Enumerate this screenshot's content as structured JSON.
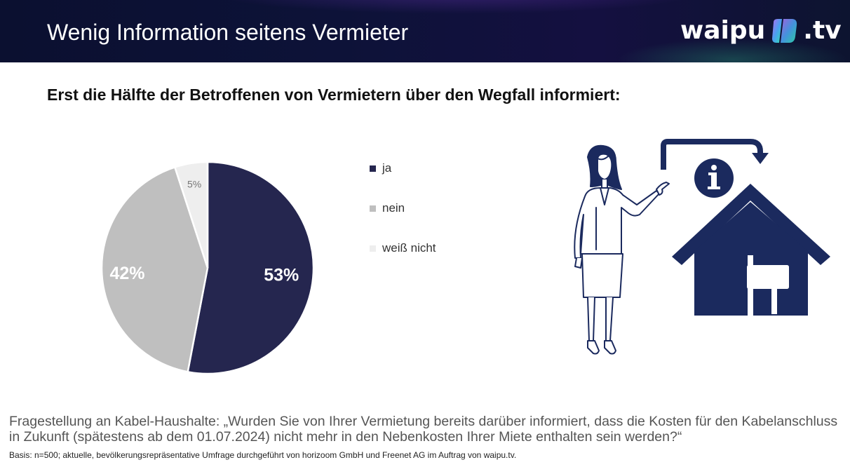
{
  "header": {
    "title": "Wenig Information seitens Vermieter",
    "logo": {
      "text_left": "waipu",
      "text_right": ".tv"
    }
  },
  "subtitle": "Erst die Hälfte der Betroffenen von Vermietern über den Wegfall informiert:",
  "chart_data": {
    "type": "pie",
    "title": "",
    "categories": [
      "ja",
      "nein",
      "weiß nicht"
    ],
    "values": [
      53,
      42,
      5
    ],
    "labels": [
      "53%",
      "42%",
      "5%"
    ],
    "colors": [
      "#25264f",
      "#bfbfbf",
      "#eeeeee"
    ],
    "label_colors": [
      "#ffffff",
      "#ffffff",
      "#777777"
    ],
    "legend_position": "right"
  },
  "illustration": {
    "icons": [
      "businesswoman-pointing-icon",
      "info-icon",
      "house-icon",
      "arrow-icon"
    ]
  },
  "footer": {
    "question": "Fragestellung an Kabel-Haushalte: „Wurden Sie von Ihrer Vermietung bereits darüber informiert, dass die Kosten für den Kabelanschluss in Zukunft (spätestens ab dem 01.07.2024) nicht mehr in den Nebenkosten Ihrer Miete enthalten sein werden?“",
    "basis": "Basis: n=500; aktuelle, bevölkerungsrepräsentative Umfrage durchgeführt von horizoom GmbH und Freenet AG  im Auftrag von waipu.tv."
  }
}
